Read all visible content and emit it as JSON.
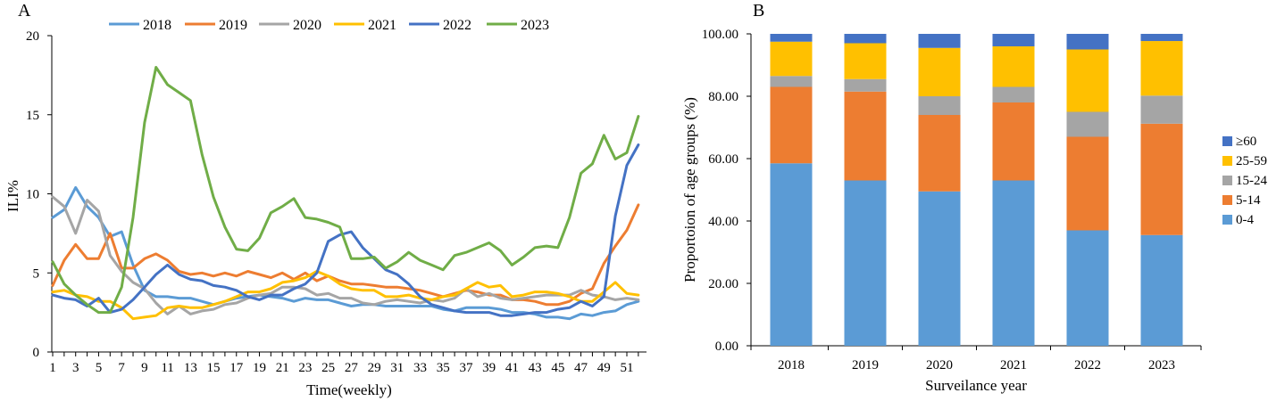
{
  "chart_data": [
    {
      "panel_label": "A",
      "type": "line",
      "title": "",
      "xlabel": "Time(weekly)",
      "ylabel": "ILI%",
      "ylim": [
        0,
        20
      ],
      "yticks": [
        0,
        5,
        10,
        15,
        20
      ],
      "x": [
        1,
        2,
        3,
        4,
        5,
        6,
        7,
        8,
        9,
        10,
        11,
        12,
        13,
        14,
        15,
        16,
        17,
        18,
        19,
        20,
        21,
        22,
        23,
        24,
        25,
        26,
        27,
        28,
        29,
        30,
        31,
        32,
        33,
        34,
        35,
        36,
        37,
        38,
        39,
        40,
        41,
        42,
        43,
        44,
        45,
        46,
        47,
        48,
        49,
        50,
        51,
        52
      ],
      "xtick_labels": [
        "1",
        "3",
        "5",
        "7",
        "9",
        "11",
        "13",
        "15",
        "17",
        "19",
        "21",
        "23",
        "25",
        "27",
        "29",
        "31",
        "33",
        "35",
        "37",
        "39",
        "41",
        "43",
        "45",
        "47",
        "49",
        "51"
      ],
      "legend_position": "top",
      "grid": false,
      "series": [
        {
          "name": "2018",
          "color": "#5B9BD5",
          "values": [
            8.5,
            9.0,
            10.4,
            9.2,
            8.5,
            7.3,
            7.6,
            5.5,
            3.9,
            3.5,
            3.5,
            3.4,
            3.4,
            3.2,
            3.0,
            3.2,
            3.4,
            3.5,
            3.6,
            3.5,
            3.4,
            3.2,
            3.4,
            3.3,
            3.3,
            3.1,
            2.9,
            3.0,
            3.0,
            2.9,
            2.9,
            2.9,
            2.9,
            2.9,
            2.7,
            2.6,
            2.8,
            2.8,
            2.8,
            2.7,
            2.5,
            2.5,
            2.4,
            2.2,
            2.2,
            2.1,
            2.4,
            2.3,
            2.5,
            2.6,
            3.0,
            3.2
          ]
        },
        {
          "name": "2019",
          "color": "#ED7D31",
          "values": [
            4.2,
            5.8,
            6.8,
            5.9,
            5.9,
            7.5,
            5.3,
            5.3,
            5.9,
            6.2,
            5.8,
            5.1,
            4.9,
            5.0,
            4.8,
            5.0,
            4.8,
            5.1,
            4.9,
            4.7,
            5.0,
            4.6,
            5.0,
            4.5,
            4.8,
            4.5,
            4.3,
            4.3,
            4.2,
            4.1,
            4.1,
            4.0,
            3.9,
            3.7,
            3.5,
            3.7,
            3.9,
            3.8,
            3.6,
            3.6,
            3.3,
            3.3,
            3.2,
            3.0,
            3.0,
            3.2,
            3.7,
            4.0,
            5.6,
            6.7,
            7.7,
            9.3
          ]
        },
        {
          "name": "2020",
          "color": "#A5A5A5",
          "values": [
            9.8,
            9.2,
            7.5,
            9.6,
            8.9,
            6.1,
            5.1,
            4.4,
            4.0,
            3.1,
            2.4,
            2.9,
            2.4,
            2.6,
            2.7,
            3.0,
            3.1,
            3.4,
            3.6,
            3.7,
            4.1,
            4.1,
            4.0,
            3.6,
            3.7,
            3.4,
            3.4,
            3.1,
            3.0,
            3.2,
            3.3,
            3.2,
            3.1,
            3.3,
            3.2,
            3.4,
            4.0,
            3.5,
            3.7,
            3.4,
            3.3,
            3.4,
            3.5,
            3.6,
            3.6,
            3.6,
            3.9,
            3.6,
            3.5,
            3.3,
            3.4,
            3.3
          ]
        },
        {
          "name": "2021",
          "color": "#FFC000",
          "values": [
            3.8,
            3.9,
            3.6,
            3.5,
            3.2,
            3.2,
            2.8,
            2.1,
            2.2,
            2.3,
            2.8,
            2.9,
            2.8,
            2.8,
            3.0,
            3.2,
            3.5,
            3.8,
            3.8,
            4.0,
            4.4,
            4.5,
            4.7,
            5.1,
            4.8,
            4.3,
            4.0,
            3.9,
            3.9,
            3.5,
            3.5,
            3.6,
            3.4,
            3.3,
            3.5,
            3.6,
            4.0,
            4.4,
            4.1,
            4.2,
            3.5,
            3.6,
            3.8,
            3.8,
            3.7,
            3.5,
            3.2,
            3.2,
            3.8,
            4.4,
            3.7,
            3.6
          ]
        },
        {
          "name": "2022",
          "color": "#4472C4",
          "values": [
            3.6,
            3.4,
            3.3,
            2.9,
            3.4,
            2.5,
            2.7,
            3.3,
            4.1,
            4.9,
            5.5,
            4.9,
            4.6,
            4.5,
            4.2,
            4.1,
            3.9,
            3.5,
            3.3,
            3.6,
            3.6,
            4.0,
            4.3,
            5.0,
            7.0,
            7.4,
            7.6,
            6.6,
            5.9,
            5.2,
            4.9,
            4.3,
            3.5,
            3.0,
            2.8,
            2.6,
            2.5,
            2.5,
            2.5,
            2.3,
            2.3,
            2.4,
            2.5,
            2.5,
            2.7,
            2.8,
            3.2,
            2.9,
            3.5,
            8.6,
            11.8,
            13.1
          ]
        },
        {
          "name": "2023",
          "color": "#70AD47",
          "values": [
            5.7,
            4.3,
            3.6,
            3.0,
            2.5,
            2.5,
            4.1,
            8.5,
            14.5,
            18.0,
            16.9,
            16.4,
            15.9,
            12.5,
            9.8,
            7.9,
            6.5,
            6.4,
            7.2,
            8.8,
            9.2,
            9.7,
            8.5,
            8.4,
            8.2,
            7.9,
            5.9,
            5.9,
            6.0,
            5.3,
            5.7,
            6.3,
            5.8,
            5.5,
            5.2,
            6.1,
            6.3,
            6.6,
            6.9,
            6.4,
            5.5,
            6.0,
            6.6,
            6.7,
            6.6,
            8.5,
            11.3,
            11.9,
            13.7,
            12.2,
            12.6,
            14.9
          ]
        }
      ]
    },
    {
      "panel_label": "B",
      "type": "bar",
      "stacked": true,
      "title": "",
      "xlabel": "Surveilance year",
      "ylabel": "Proportoion of age groups (%)",
      "ylim": [
        0,
        100
      ],
      "ytick_labels": [
        "0.00",
        "20.00",
        "40.00",
        "60.00",
        "80.00",
        "100.00"
      ],
      "categories": [
        "2018",
        "2019",
        "2020",
        "2021",
        "2022",
        "2023"
      ],
      "legend_position": "right",
      "grid": false,
      "series": [
        {
          "name": "0-4",
          "color": "#5B9BD5",
          "values": [
            58.5,
            53.0,
            49.5,
            53.0,
            37.0,
            35.5
          ]
        },
        {
          "name": "5-14",
          "color": "#ED7D31",
          "values": [
            24.5,
            28.5,
            24.5,
            25.0,
            30.0,
            35.7
          ]
        },
        {
          "name": "15-24",
          "color": "#A5A5A5",
          "values": [
            3.5,
            4.0,
            6.0,
            5.0,
            8.0,
            9.0
          ]
        },
        {
          "name": "25-59",
          "color": "#FFC000",
          "values": [
            11.0,
            11.5,
            15.5,
            13.0,
            20.0,
            17.5
          ]
        },
        {
          "name": "≥60",
          "color": "#4472C4",
          "values": [
            2.5,
            3.0,
            4.5,
            4.0,
            5.0,
            2.3
          ]
        }
      ]
    }
  ]
}
